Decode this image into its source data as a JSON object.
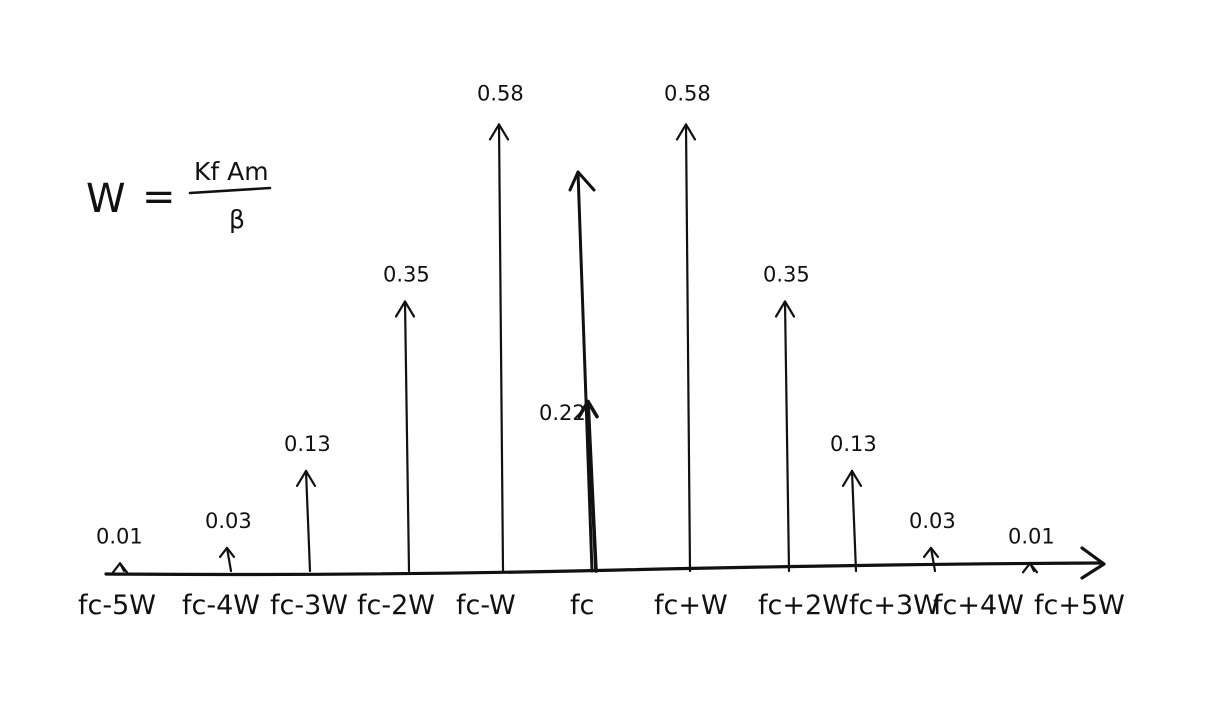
{
  "diagram": {
    "formula": {
      "lhs": "W",
      "equals": "=",
      "numerator": "Kf Am",
      "denominator": "β"
    },
    "carrier": {
      "label": "fc",
      "value": -0.22,
      "value_label": "0.22"
    },
    "sidebands": [
      {
        "label": "fc-5W",
        "value": 0.01,
        "value_label": "0.01"
      },
      {
        "label": "fc-4W",
        "value": 0.03,
        "value_label": "0.03"
      },
      {
        "label": "fc-3W",
        "value": 0.13,
        "value_label": "0.13"
      },
      {
        "label": "fc-2W",
        "value": 0.35,
        "value_label": "0.35"
      },
      {
        "label": "fc-W",
        "value": 0.58,
        "value_label": "0.58"
      },
      {
        "label": "fc+W",
        "value": 0.58,
        "value_label": "0.58"
      },
      {
        "label": "fc+2W",
        "value": 0.35,
        "value_label": "0.35"
      },
      {
        "label": "fc+3W",
        "value": 0.13,
        "value_label": "0.13"
      },
      {
        "label": "fc+4W",
        "value": 0.03,
        "value_label": "0.03"
      },
      {
        "label": "fc+5W",
        "value": 0.01,
        "value_label": "0.01"
      }
    ],
    "ink_color": "#111111",
    "background_color": "#ffffff"
  }
}
